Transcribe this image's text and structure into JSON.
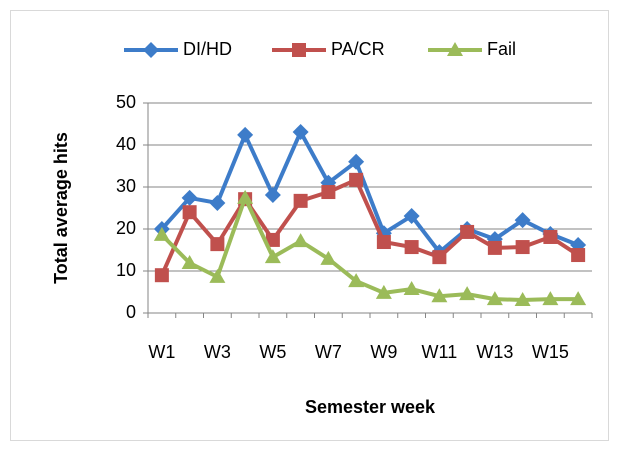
{
  "chart_data": {
    "type": "line",
    "categories": [
      "W1",
      null,
      "W3",
      null,
      "W5",
      null,
      "W7",
      null,
      "W9",
      null,
      "W11",
      null,
      "W13",
      null,
      "W15",
      null
    ],
    "series": [
      {
        "name": "DI/HD",
        "color": "#3d7cc9",
        "marker": "diamond",
        "values": [
          20,
          27.4,
          26.2,
          42.4,
          28.1,
          43.1,
          31,
          36,
          19,
          23.1,
          14.5,
          20,
          17.6,
          22.1,
          18.8,
          16.2
        ]
      },
      {
        "name": "PA/CR",
        "color": "#c0504d",
        "marker": "square",
        "values": [
          9,
          24,
          16.4,
          27.1,
          17.4,
          26.7,
          28.8,
          31.7,
          16.9,
          15.7,
          13.3,
          19.3,
          15.5,
          15.7,
          18.1,
          13.8
        ]
      },
      {
        "name": "Fail",
        "color": "#9bbb59",
        "marker": "triangle",
        "values": [
          18.6,
          11.9,
          8.6,
          27.4,
          13.3,
          17.1,
          12.9,
          7.6,
          4.8,
          5.7,
          4,
          4.5,
          3.3,
          3.1,
          3.3,
          3.3
        ]
      }
    ],
    "x_label": "Semester week",
    "y_label": "Total average hits",
    "ylim": [
      0,
      50
    ],
    "yticks": [
      0,
      10,
      20,
      30,
      40,
      50
    ],
    "grid": true,
    "legend": "top"
  }
}
